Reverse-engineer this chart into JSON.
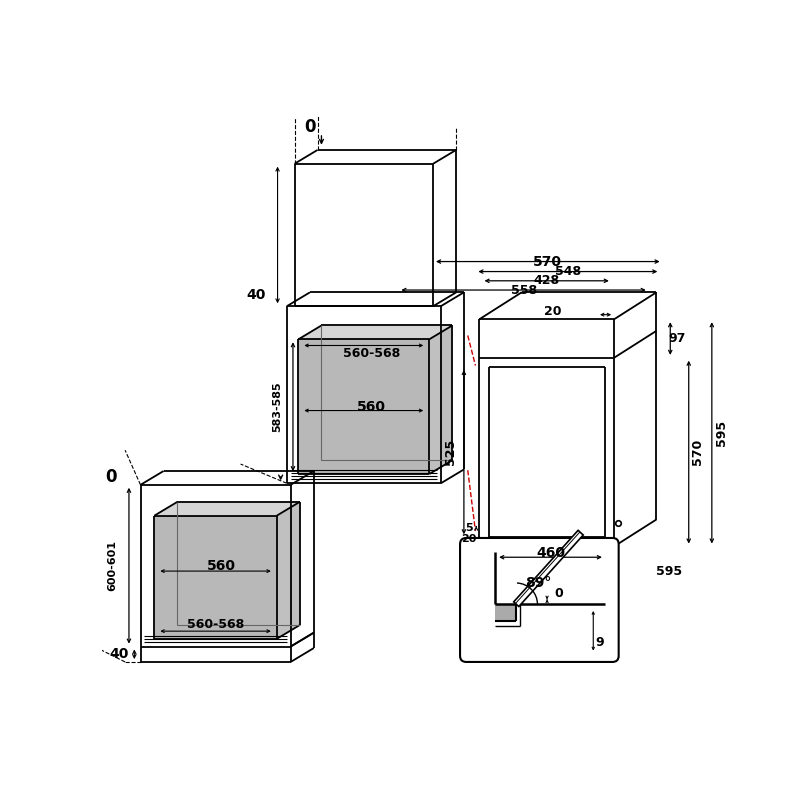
{
  "bg_color": "#ffffff",
  "line_color": "#000000",
  "red_dashed_color": "#cc0000",
  "gray_fill": "#b8b8b8",
  "font_size_dim": 9,
  "font_size_dim_large": 10,
  "labels": {
    "0_top": "0",
    "40_upper": "40",
    "0_mid": "0",
    "40_bottom": "40",
    "560_568_upper": "560-568",
    "583_585": "583-585",
    "560_upper": "560",
    "560_lower": "560",
    "560_568_lower": "560-568",
    "600_601": "600-601",
    "570": "570",
    "548": "548",
    "558": "558",
    "428": "428",
    "20_top": "20",
    "97": "97",
    "525": "525",
    "570_vert": "570",
    "595_vert": "595",
    "5": "5",
    "20_lower": "20",
    "595_horiz": "595",
    "460": "460",
    "89deg": "89°",
    "0_inset": "0",
    "9_inset": "9"
  }
}
